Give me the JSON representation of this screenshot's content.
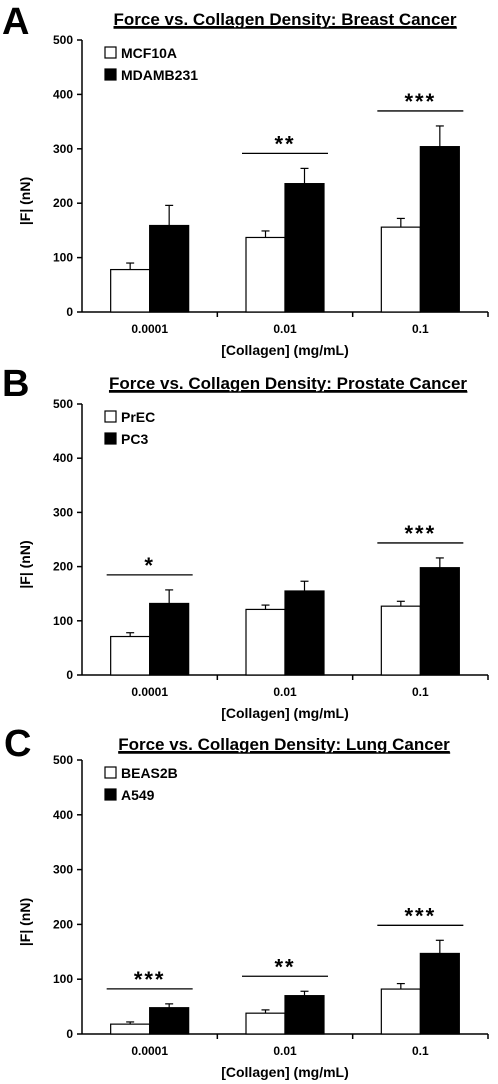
{
  "chart_data": [
    {
      "panel": "A",
      "type": "bar",
      "title": "Force vs. Collagen Density: Breast Cancer",
      "xlabel": "[Collagen] (mg/mL)",
      "ylabel": "|F| (nN)",
      "ylim": [
        0,
        500
      ],
      "yticks": [
        "0",
        "100",
        "200",
        "300",
        "400",
        "500"
      ],
      "categories": [
        "0.0001",
        "0.01",
        "0.1"
      ],
      "series": [
        {
          "name": "MCF10A",
          "color": "#ffffff",
          "values": [
            78,
            137,
            156
          ],
          "errors": [
            12,
            12,
            16
          ]
        },
        {
          "name": "MDAMB231",
          "color": "#000000",
          "values": [
            159,
            236,
            304
          ],
          "errors": [
            37,
            28,
            38
          ]
        }
      ],
      "significance": [
        "",
        "**",
        "***"
      ],
      "legend_position": "top-left",
      "grid": false
    },
    {
      "panel": "B",
      "type": "bar",
      "title": "Force vs. Collagen Density: Prostate Cancer",
      "xlabel": "[Collagen] (mg/mL)",
      "ylabel": "|F| (nN)",
      "ylim": [
        0,
        500
      ],
      "yticks": [
        "0",
        "100",
        "200",
        "300",
        "400",
        "500"
      ],
      "categories": [
        "0.0001",
        "0.01",
        "0.1"
      ],
      "series": [
        {
          "name": "PrEC",
          "color": "#ffffff",
          "values": [
            71,
            121,
            127
          ],
          "errors": [
            7,
            8,
            9
          ]
        },
        {
          "name": "PC3",
          "color": "#000000",
          "values": [
            132,
            155,
            198
          ],
          "errors": [
            25,
            18,
            18
          ]
        }
      ],
      "significance": [
        "*",
        "",
        "***"
      ],
      "legend_position": "top-left",
      "grid": false
    },
    {
      "panel": "C",
      "type": "bar",
      "title": "Force vs. Collagen Density: Lung Cancer",
      "xlabel": "[Collagen] (mg/mL)",
      "ylabel": "|F| (nN)",
      "ylim": [
        0,
        500
      ],
      "yticks": [
        "0",
        "100",
        "200",
        "300",
        "400",
        "500"
      ],
      "categories": [
        "0.0001",
        "0.01",
        "0.1"
      ],
      "series": [
        {
          "name": "BEAS2B",
          "color": "#ffffff",
          "values": [
            18,
            38,
            82
          ],
          "errors": [
            4,
            6,
            10
          ]
        },
        {
          "name": "A549",
          "color": "#000000",
          "values": [
            48,
            70,
            147
          ],
          "errors": [
            7,
            8,
            24
          ]
        }
      ],
      "significance": [
        "***",
        "**",
        "***"
      ],
      "legend_position": "top-left",
      "grid": false
    }
  ]
}
